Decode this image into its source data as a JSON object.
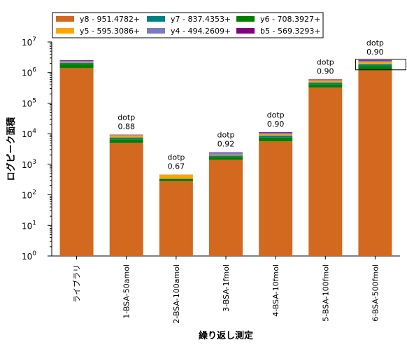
{
  "chart_data": {
    "type": "bar",
    "stacked": true,
    "y_scale": "log",
    "ylim": [
      1,
      10000000
    ],
    "ylabel": "ログピーク面積",
    "xlabel": "繰り返し測定",
    "categories": [
      "ライブラリ",
      "1-BSA-50amol",
      "2-BSA-100amol",
      "3-BSA-1fmol",
      "4-BSA-10fmol",
      "5-BSA-100fmol",
      "6-BSA-500fmol"
    ],
    "legend_position": "top",
    "series": [
      {
        "name": "y8 - 951.4782+",
        "color": "#d2691e",
        "values": [
          1400000,
          5000,
          280,
          1400,
          5600,
          320000,
          1200000
        ]
      },
      {
        "name": "y6 - 708.3927+",
        "color": "#008000",
        "values": [
          450000,
          1500,
          50,
          350,
          1800,
          90000,
          450000
        ]
      },
      {
        "name": "y7 - 837.4353+",
        "color": "#008080",
        "values": [
          250000,
          1000,
          8,
          180,
          1200,
          60000,
          220000
        ]
      },
      {
        "name": "y5 - 595.3086+",
        "color": "#ffa500",
        "values": [
          120000,
          1300,
          120,
          120,
          1000,
          70000,
          350000
        ]
      },
      {
        "name": "y4 - 494.2609+",
        "color": "#7b7bc0",
        "values": [
          230000,
          400,
          4,
          400,
          1100,
          40000,
          250000
        ]
      },
      {
        "name": "b5 - 569.3293+",
        "color": "#800080",
        "values": [
          100000,
          150,
          1,
          50,
          500,
          20000,
          100000
        ]
      }
    ],
    "legend_order": [
      "y8 - 951.4782+",
      "y7 - 837.4353+",
      "y6 - 708.3927+",
      "y5 - 595.3086+",
      "y4 - 494.2609+",
      "b5 - 569.3293+"
    ],
    "annotations": [
      {
        "category": "1-BSA-50amol",
        "label": "dotp",
        "value": "0.88"
      },
      {
        "category": "2-BSA-100amol",
        "label": "dotp",
        "value": "0.67"
      },
      {
        "category": "3-BSA-1fmol",
        "label": "dotp",
        "value": "0.92"
      },
      {
        "category": "4-BSA-10fmol",
        "label": "dotp",
        "value": "0.90"
      },
      {
        "category": "5-BSA-100fmol",
        "label": "dotp",
        "value": "0.90"
      },
      {
        "category": "6-BSA-500fmol",
        "label": "dotp",
        "value": "0.90"
      }
    ],
    "selected_category": "6-BSA-500fmol",
    "ytick_exponents": [
      0,
      1,
      2,
      3,
      4,
      5,
      6,
      7
    ]
  }
}
